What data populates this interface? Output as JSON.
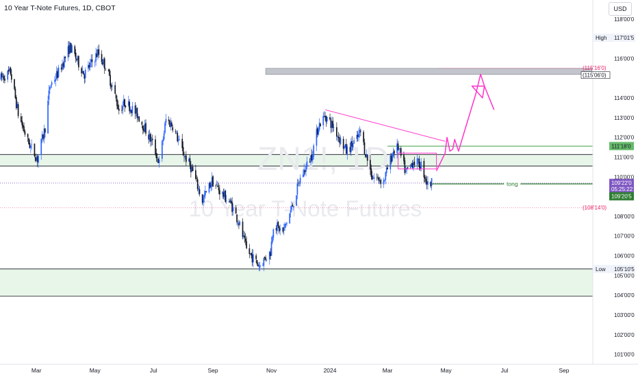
{
  "header": {
    "title": "10 Year T-Note Futures, 1D, CBOT",
    "currency": "USD"
  },
  "watermark": {
    "symbol": "ZN1!, 1D",
    "name": "10 Year T-Note Futures"
  },
  "colors": {
    "up": "#2962ff",
    "down": "#131722",
    "zone_fill": "#e8f5e9",
    "pink": "#ff33cc",
    "green_line": "#43a047",
    "purple_tag": "#7e57c2",
    "grey_zone": "#b2b5be"
  },
  "chart_data": {
    "type": "candlestick",
    "title": "10 Year T-Note Futures, 1D, CBOT",
    "y_range": [
      100.5,
      118.2
    ],
    "x_range": [
      "2023-01-22",
      "2024-10-01"
    ],
    "grid": false,
    "y_ticks": [
      {
        "value": 101.0,
        "label": "101'00'0"
      },
      {
        "value": 102.0,
        "label": "102'00'0"
      },
      {
        "value": 103.0,
        "label": "103'00'0"
      },
      {
        "value": 104.0,
        "label": "104'00'0"
      },
      {
        "value": 105.0,
        "label": "105'00'0"
      },
      {
        "value": 106.0,
        "label": "106'00'0"
      },
      {
        "value": 107.0,
        "label": "107'00'0"
      },
      {
        "value": 108.0,
        "label": "108'00'0"
      },
      {
        "value": 110.0,
        "label": "110'00'0"
      },
      {
        "value": 111.0,
        "label": "111'00'0"
      },
      {
        "value": 112.0,
        "label": "112'00'0"
      },
      {
        "value": 113.0,
        "label": "113'00'0"
      },
      {
        "value": 114.0,
        "label": "114'00'0"
      },
      {
        "value": 116.0,
        "label": "116'00'0"
      },
      {
        "value": 118.0,
        "label": "118'00'0"
      }
    ],
    "x_ticks": [
      {
        "date": "2023-03-01",
        "label": "Mar"
      },
      {
        "date": "2023-05-01",
        "label": "May"
      },
      {
        "date": "2023-07-01",
        "label": "Jul"
      },
      {
        "date": "2023-09-01",
        "label": "Sep"
      },
      {
        "date": "2023-11-01",
        "label": "Nov"
      },
      {
        "date": "2024-01-01",
        "label": "2024"
      },
      {
        "date": "2024-03-01",
        "label": "Mar"
      },
      {
        "date": "2024-05-01",
        "label": "May"
      },
      {
        "date": "2024-07-01",
        "label": "Jul"
      },
      {
        "date": "2024-09-01",
        "label": "Sep"
      }
    ],
    "path_anchors": [
      [
        "2023-01-23",
        115.0
      ],
      [
        "2023-02-02",
        115.3
      ],
      [
        "2023-02-10",
        113.2
      ],
      [
        "2023-02-20",
        111.8
      ],
      [
        "2023-03-02",
        110.9
      ],
      [
        "2023-03-10",
        112.5
      ],
      [
        "2023-03-15",
        114.6
      ],
      [
        "2023-03-24",
        115.3
      ],
      [
        "2023-04-05",
        116.6
      ],
      [
        "2023-04-20",
        115.2
      ],
      [
        "2023-05-04",
        116.3
      ],
      [
        "2023-05-12",
        115.6
      ],
      [
        "2023-05-19",
        114.6
      ],
      [
        "2023-05-26",
        113.4
      ],
      [
        "2023-06-02",
        113.8
      ],
      [
        "2023-06-15",
        113.1
      ],
      [
        "2023-06-30",
        111.7
      ],
      [
        "2023-07-07",
        110.7
      ],
      [
        "2023-07-14",
        112.9
      ],
      [
        "2023-07-21",
        112.6
      ],
      [
        "2023-08-01",
        111.2
      ],
      [
        "2023-08-10",
        110.4
      ],
      [
        "2023-08-21",
        108.8
      ],
      [
        "2023-08-31",
        109.8
      ],
      [
        "2023-09-08",
        109.3
      ],
      [
        "2023-09-20",
        108.6
      ],
      [
        "2023-09-28",
        107.7
      ],
      [
        "2023-10-06",
        106.3
      ],
      [
        "2023-10-19",
        105.5
      ],
      [
        "2023-10-31",
        106.2
      ],
      [
        "2023-11-03",
        107.6
      ],
      [
        "2023-11-13",
        107.2
      ],
      [
        "2023-11-22",
        108.4
      ],
      [
        "2023-12-01",
        109.9
      ],
      [
        "2023-12-13",
        111.1
      ],
      [
        "2023-12-20",
        112.6
      ],
      [
        "2023-12-27",
        113.1
      ],
      [
        "2024-01-05",
        112.5
      ],
      [
        "2024-01-18",
        111.3
      ],
      [
        "2024-01-29",
        111.9
      ],
      [
        "2024-02-02",
        112.3
      ],
      [
        "2024-02-06",
        111.4
      ],
      [
        "2024-02-14",
        110.0
      ],
      [
        "2024-02-26",
        109.8
      ],
      [
        "2024-03-07",
        111.3
      ],
      [
        "2024-03-12",
        111.5
      ],
      [
        "2024-03-20",
        110.2
      ],
      [
        "2024-03-28",
        110.8
      ],
      [
        "2024-04-05",
        110.6
      ],
      [
        "2024-04-12",
        109.6
      ],
      [
        "2024-04-16",
        109.7
      ]
    ],
    "last_price": 109.69,
    "levels": [
      {
        "name": "high",
        "label": "High",
        "value": 117.05,
        "price_label": "117'01'5"
      },
      {
        "name": "target-a",
        "label": "",
        "value": 115.5,
        "price_label": "(115'16'0)"
      },
      {
        "name": "target-b",
        "label": "",
        "value": 115.19,
        "price_label": "(115'06'0)"
      },
      {
        "name": "resistance",
        "label": "",
        "value": 111.56,
        "price_label": "111'18'0"
      },
      {
        "name": "last",
        "label": "",
        "value": 109.69,
        "price_label": "109'22'0",
        "countdown": "05:25:22"
      },
      {
        "name": "tong",
        "label": "tong",
        "value": 109.64,
        "price_label": "109'20'5"
      },
      {
        "name": "stop",
        "label": "",
        "value": 108.44,
        "price_label": "(108'14'0)"
      },
      {
        "name": "low",
        "label": "Low",
        "value": 105.33,
        "price_label": "105'10'5"
      }
    ],
    "zones": [
      {
        "name": "support-zone-upper",
        "from": 110.55,
        "to": 111.13
      },
      {
        "name": "support-zone-lower",
        "from": 103.95,
        "to": 105.33
      },
      {
        "name": "target-zone",
        "from": 115.19,
        "to": 115.5
      }
    ],
    "drawings": {
      "trendline": [
        [
          "2023-12-27",
          113.4
        ],
        [
          "2024-04-30",
          111.8
        ]
      ],
      "rectangle": [
        [
          "2024-03-12",
          110.4
        ],
        [
          "2024-04-21",
          111.2
        ]
      ],
      "projection": [
        [
          "2024-04-21",
          110.3
        ],
        [
          "2024-04-30",
          111.2
        ],
        [
          "2024-05-02",
          112.0
        ],
        [
          "2024-05-05",
          111.3
        ],
        [
          "2024-05-08",
          111.4
        ],
        [
          "2024-05-10",
          111.9
        ],
        [
          "2024-05-14",
          111.3
        ],
        [
          "2024-05-22",
          112.6
        ],
        [
          "2024-06-01",
          114.2
        ],
        [
          "2024-06-06",
          115.2
        ],
        [
          "2024-06-10",
          114.6
        ],
        [
          "2024-06-08",
          114.0
        ],
        [
          "2024-05-28",
          114.6
        ],
        [
          "2024-06-10",
          114.6
        ],
        [
          "2024-06-20",
          113.4
        ]
      ]
    }
  }
}
